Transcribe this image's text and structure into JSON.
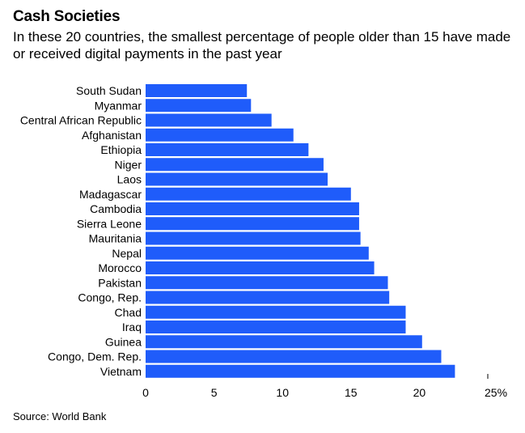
{
  "title": "Cash Societies",
  "subtitle": "In these 20 countries, the smallest percentage of people older than 15 have made or received digital payments in the past year",
  "source": "Source: World Bank",
  "chart_data": {
    "type": "bar",
    "orientation": "horizontal",
    "categories": [
      "South Sudan",
      "Myanmar",
      "Central African Republic",
      "Afghanistan",
      "Ethiopia",
      "Niger",
      "Laos",
      "Madagascar",
      "Cambodia",
      "Sierra Leone",
      "Mauritania",
      "Nepal",
      "Morocco",
      "Pakistan",
      "Congo, Rep.",
      "Chad",
      "Iraq",
      "Guinea",
      "Congo, Dem. Rep.",
      "Vietnam"
    ],
    "values": [
      7.4,
      7.7,
      9.2,
      10.8,
      11.9,
      13.0,
      13.3,
      15.0,
      15.6,
      15.6,
      15.7,
      16.3,
      16.7,
      17.7,
      17.8,
      19.0,
      19.0,
      20.2,
      21.6,
      22.6
    ],
    "xlim": [
      0,
      25
    ],
    "xticks": [
      "0",
      "5",
      "10",
      "15",
      "20",
      "25%"
    ],
    "xtick_values": [
      0,
      5,
      10,
      15,
      20,
      25
    ],
    "bar_color": "#1f5cfa",
    "grid": false
  }
}
